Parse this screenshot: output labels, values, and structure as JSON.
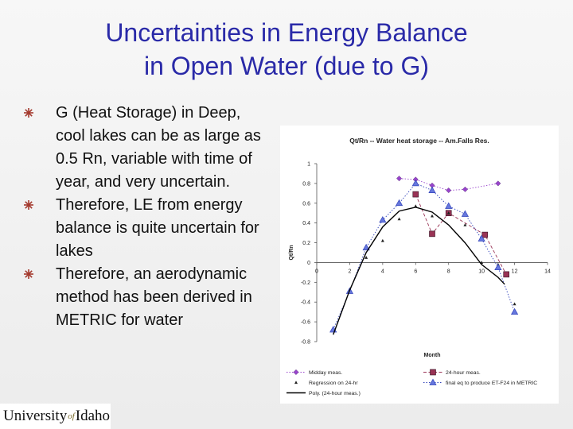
{
  "slide": {
    "title_line1": "Uncertainties in Energy Balance",
    "title_line2": "in Open Water (due to G)",
    "bullets": [
      "G (Heat Storage) in Deep, cool lakes can be as large as 0.5 Rn, variable with time of year, and very uncertain.",
      "Therefore, LE from energy balance is quite uncertain for lakes",
      "Therefore, an aerodynamic method has been derived in METRIC for water"
    ],
    "bullet_icon": "asterisk-bullet-icon",
    "logo": {
      "part1": "University",
      "part2": "of",
      "part3": "Idaho"
    },
    "colors": {
      "title": "#2a2aa8",
      "midday": "#9944cc",
      "meas24": "#993355",
      "final": "#3344bb"
    }
  },
  "chart_data": {
    "type": "line",
    "title": "Qt/Rn -- Water heat storage -- Am.Falls Res.",
    "xlabel": "Month",
    "ylabel": "Qt/Rn",
    "xlim": [
      0,
      14
    ],
    "ylim": [
      -0.8,
      1
    ],
    "x_ticks": [
      "0",
      "2",
      "4",
      "6",
      "8",
      "10",
      "12",
      "14"
    ],
    "y_ticks": [
      "1",
      "0.8",
      "0.6",
      "0.4",
      "0.2",
      "0",
      "-0.2",
      "-0.4",
      "-0.6",
      "-0.8"
    ],
    "grid": false,
    "legend_position": "bottom",
    "series": [
      {
        "name": "Midday meas.",
        "marker": "diamond",
        "color": "#9944cc",
        "line": "dotted",
        "x": [
          5,
          6,
          7,
          8,
          9,
          11
        ],
        "y": [
          0.85,
          0.84,
          0.78,
          0.73,
          0.74,
          0.8
        ]
      },
      {
        "name": "24-hour meas.",
        "marker": "square",
        "color": "#993355",
        "line": "dashed",
        "x": [
          6,
          7,
          8,
          10.2,
          11.5
        ],
        "y": [
          0.69,
          0.29,
          0.5,
          0.28,
          -0.12
        ]
      },
      {
        "name": "Regression on 24-hr",
        "marker": "triangle-small",
        "color": "#222222",
        "line": "none",
        "x": [
          1,
          2,
          3,
          4,
          5,
          6,
          7,
          8,
          9,
          10,
          11,
          12
        ],
        "y": [
          -0.68,
          -0.27,
          0.05,
          0.22,
          0.44,
          0.57,
          0.47,
          0.5,
          0.38,
          0.0,
          -0.02,
          -0.42
        ]
      },
      {
        "name": "final eq to produce ET-F24 in METRIC",
        "marker": "triangle",
        "color": "#3344bb",
        "line": "dotted",
        "x": [
          1,
          2,
          3,
          4,
          5,
          6,
          7,
          8,
          9,
          10,
          11,
          12
        ],
        "y": [
          -0.68,
          -0.29,
          0.15,
          0.43,
          0.6,
          0.8,
          0.73,
          0.57,
          0.49,
          0.24,
          -0.05,
          -0.5
        ]
      },
      {
        "name": "Poly. (24-hour meas.)",
        "marker": "none",
        "color": "#000000",
        "line": "solid",
        "x": [
          1,
          2,
          3,
          4,
          5,
          6,
          7,
          8,
          9,
          10,
          11,
          11.4
        ],
        "y": [
          -0.73,
          -0.28,
          0.1,
          0.36,
          0.52,
          0.56,
          0.51,
          0.38,
          0.2,
          -0.02,
          -0.15,
          -0.22
        ]
      }
    ]
  }
}
